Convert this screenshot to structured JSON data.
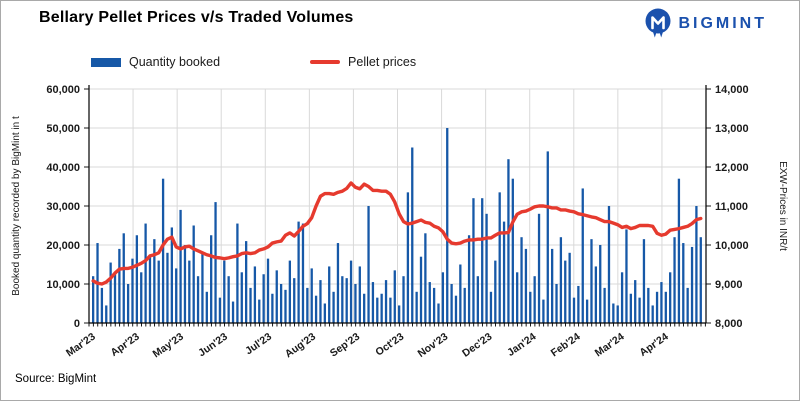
{
  "header": {
    "title": "Bellary Pellet Prices v/s Traded Volumes",
    "brand": "BIGMINT"
  },
  "footer": {
    "source": "Source: BigMint"
  },
  "colors": {
    "bar": "#1658A7",
    "line": "#E63A2E",
    "brand": "#1B51AD",
    "grid": "#D9D9D9",
    "axis": "#000000",
    "text": "#1A1A1A"
  },
  "chart_data": {
    "type": "combo",
    "title": "Bellary Pellet Prices v/s Traded Volumes",
    "legend": [
      "Quantity booked",
      "Pellet prices"
    ],
    "legend_position": "top",
    "grid": true,
    "note": "values estimated from pixels; ~10 booking bars per month Mar'23-Apr'24",
    "x_axis": {
      "monthly_labels": [
        "Mar'23",
        "Apr'23",
        "May'23",
        "Jun'23",
        "Jul'23",
        "Aug'23",
        "Sep'23",
        "Oct'23",
        "Nov'23",
        "Dec'23",
        "Jan'24",
        "Feb'24",
        "Mar'24",
        "Apr'24"
      ],
      "bars_per_month": 10
    },
    "y_left": {
      "label": "Booked quantity recorded by BigMint in t",
      "min": 0,
      "max": 60000,
      "step": 10000
    },
    "y_right": {
      "label": "EXW-Prices in INR/t",
      "min": 8000,
      "max": 14000,
      "step": 1000
    },
    "series": [
      {
        "name": "Quantity booked",
        "type": "bar",
        "axis": "left",
        "unit": "t",
        "values": [
          12000,
          20500,
          9000,
          4500,
          15500,
          13000,
          19000,
          23000,
          10000,
          16500,
          22500,
          13000,
          25500,
          17000,
          21500,
          16000,
          37000,
          18000,
          24500,
          14000,
          29000,
          20000,
          16000,
          25000,
          12000,
          18000,
          8000,
          22500,
          31000,
          6500,
          16000,
          12000,
          5500,
          25500,
          13000,
          21000,
          9000,
          14500,
          6000,
          12500,
          16500,
          7500,
          13500,
          10000,
          8500,
          16000,
          11500,
          26000,
          25500,
          9000,
          14000,
          7000,
          11000,
          5000,
          14500,
          8000,
          20500,
          12000,
          11500,
          16000,
          10000,
          14500,
          7500,
          30000,
          10500,
          6500,
          7500,
          11000,
          6500,
          13500,
          4500,
          12000,
          33500,
          45000,
          8000,
          17000,
          23000,
          10500,
          9000,
          5000,
          13000,
          50000,
          10000,
          7000,
          15000,
          9000,
          22500,
          32000,
          12000,
          32000,
          28000,
          8000,
          16000,
          33500,
          26000,
          42000,
          37000,
          13000,
          22000,
          19000,
          8000,
          12000,
          28000,
          6000,
          44000,
          19000,
          10000,
          22000,
          16000,
          18000,
          6500,
          9500,
          34500,
          6000,
          21500,
          14500,
          20000,
          9000,
          30000,
          5000,
          4500,
          13000,
          24000,
          7500,
          11000,
          6500,
          21500,
          9000,
          4500,
          8000,
          10500,
          8000,
          13000,
          22000,
          37000,
          20500,
          9000,
          19500,
          30000,
          22000
        ]
      },
      {
        "name": "Pellet prices",
        "type": "line",
        "axis": "right",
        "unit": "INR/t",
        "values": [
          9080,
          9020,
          9000,
          9050,
          9150,
          9280,
          9380,
          9400,
          9400,
          9430,
          9480,
          9530,
          9600,
          9720,
          9750,
          9800,
          10000,
          10150,
          10200,
          9950,
          9900,
          9950,
          9970,
          9900,
          9850,
          9800,
          9750,
          9720,
          9680,
          9670,
          9650,
          9670,
          9700,
          9720,
          9780,
          9800,
          9780,
          9800,
          9870,
          9900,
          9950,
          10050,
          10080,
          10100,
          10250,
          10310,
          10230,
          10350,
          10480,
          10550,
          10700,
          11000,
          11250,
          11320,
          11320,
          11300,
          11350,
          11380,
          11450,
          11590,
          11480,
          11440,
          11560,
          11500,
          11400,
          11400,
          11380,
          11380,
          11300,
          11100,
          10800,
          10600,
          10540,
          10560,
          10600,
          10640,
          10580,
          10560,
          10480,
          10440,
          10340,
          10150,
          10050,
          10030,
          10050,
          10100,
          10130,
          10130,
          10150,
          10150,
          10180,
          10180,
          10250,
          10310,
          10310,
          10320,
          10590,
          10790,
          10850,
          10870,
          10920,
          10980,
          11000,
          11000,
          10980,
          10950,
          10950,
          10900,
          10900,
          10870,
          10850,
          10800,
          10780,
          10750,
          10720,
          10700,
          10650,
          10600,
          10600,
          10560,
          10520,
          10450,
          10480,
          10420,
          10450,
          10500,
          10500,
          10500,
          10480,
          10300,
          10250,
          10280,
          10380,
          10400,
          10420,
          10450,
          10480,
          10550,
          10650,
          10680
        ]
      }
    ]
  }
}
